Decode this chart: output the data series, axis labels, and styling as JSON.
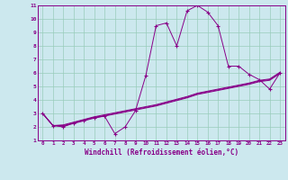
{
  "xlabel": "Windchill (Refroidissement éolien,°C)",
  "bg_color": "#cce8ee",
  "line_color": "#880088",
  "grid_color": "#99ccbb",
  "xlim": [
    -0.5,
    23.5
  ],
  "ylim": [
    1,
    11
  ],
  "yticks": [
    1,
    2,
    3,
    4,
    5,
    6,
    7,
    8,
    9,
    10,
    11
  ],
  "xticks": [
    0,
    1,
    2,
    3,
    4,
    5,
    6,
    7,
    8,
    9,
    10,
    11,
    12,
    13,
    14,
    15,
    16,
    17,
    18,
    19,
    20,
    21,
    22,
    23
  ],
  "main_line_x": [
    0,
    1,
    2,
    3,
    4,
    5,
    6,
    7,
    8,
    9,
    10,
    11,
    12,
    13,
    14,
    15,
    16,
    17,
    18,
    19,
    20,
    21,
    22,
    23
  ],
  "main_line_y": [
    3.0,
    2.1,
    2.0,
    2.3,
    2.5,
    2.7,
    2.8,
    1.5,
    2.0,
    3.2,
    5.8,
    9.5,
    9.7,
    8.0,
    10.6,
    11.0,
    10.5,
    9.5,
    6.5,
    6.5,
    5.9,
    5.5,
    4.8,
    6.0
  ],
  "line2_x": [
    0,
    1,
    2,
    3,
    4,
    5,
    6,
    7,
    8,
    9,
    10,
    11,
    12,
    13,
    14,
    15,
    16,
    17,
    18,
    19,
    20,
    21,
    22,
    23
  ],
  "line2_y": [
    3.0,
    2.1,
    2.15,
    2.35,
    2.55,
    2.75,
    2.9,
    3.05,
    3.2,
    3.35,
    3.5,
    3.65,
    3.85,
    4.05,
    4.25,
    4.5,
    4.65,
    4.8,
    4.95,
    5.1,
    5.25,
    5.45,
    5.55,
    6.05
  ],
  "line3_x": [
    0,
    1,
    2,
    3,
    4,
    5,
    6,
    7,
    8,
    9,
    10,
    11,
    12,
    13,
    14,
    15,
    16,
    17,
    18,
    19,
    20,
    21,
    22,
    23
  ],
  "line3_y": [
    3.0,
    2.1,
    2.1,
    2.3,
    2.5,
    2.7,
    2.85,
    3.0,
    3.15,
    3.3,
    3.45,
    3.6,
    3.8,
    4.0,
    4.2,
    4.45,
    4.6,
    4.75,
    4.9,
    5.05,
    5.2,
    5.4,
    5.5,
    6.0
  ],
  "line4_x": [
    0,
    1,
    2,
    3,
    4,
    5,
    6,
    7,
    8,
    9,
    10,
    11,
    12,
    13,
    14,
    15,
    16,
    17,
    18,
    19,
    20,
    21,
    22,
    23
  ],
  "line4_y": [
    3.0,
    2.1,
    2.05,
    2.25,
    2.45,
    2.65,
    2.8,
    2.95,
    3.1,
    3.25,
    3.4,
    3.55,
    3.75,
    3.95,
    4.15,
    4.4,
    4.55,
    4.7,
    4.85,
    5.0,
    5.15,
    5.35,
    5.45,
    5.95
  ]
}
